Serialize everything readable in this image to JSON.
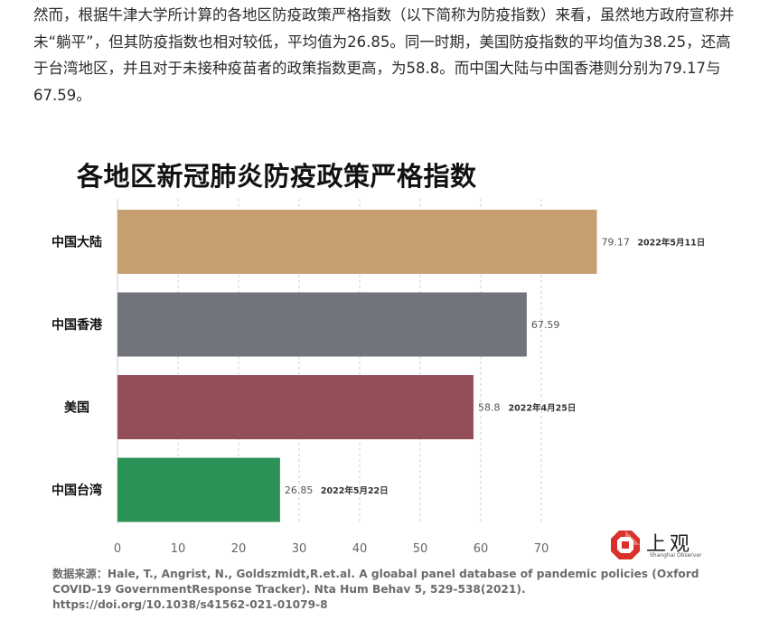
{
  "article": {
    "paragraph": "然而，根据牛津大学所计算的各地区防疫政策严格指数（以下简称为防疫指数）来看，虽然地方政府宣称并未“躺平”，但其防疫指数也相对较低，平均值为26.85。同一时期，美国防疫指数的平均值为38.25，还高于台湾地区，并且对于未接种疫苗者的政策指数更高，为58.8。而中国大陆与中国香港则分别为79.17与67.59。"
  },
  "chart_data": {
    "type": "bar",
    "orientation": "horizontal",
    "title": "各地区新冠肺炎防疫政策严格指数",
    "categories": [
      "中国大陆",
      "中国香港",
      "美国",
      "中国台湾"
    ],
    "values": [
      79.17,
      67.59,
      58.8,
      26.85
    ],
    "value_labels": [
      "79.17",
      "67.59",
      "58.8",
      "26.85"
    ],
    "date_labels": [
      "2022年5月11日",
      "",
      "2022年4月25日",
      "2022年5月22日"
    ],
    "colors": [
      "#c69f70",
      "#71747b",
      "#934f58",
      "#2b9257"
    ],
    "xticks": [
      0,
      10,
      20,
      30,
      40,
      50,
      60,
      70
    ],
    "xlim": [
      0,
      80
    ],
    "grid": true,
    "source": "数据来源：Hale, T., Angrist, N., Goldszmidt,R.et.al. A gloabal panel database of pandemic policies (Oxford COVID-19 GovernmentResponse Tracker). Nta Hum Behav 5, 529-538(2021). https://doi.org/10.1038/s41562-021-01079-8"
  },
  "logo": {
    "text": "上观",
    "subtext": "Shanghai Observer",
    "color": "#d9322b"
  }
}
